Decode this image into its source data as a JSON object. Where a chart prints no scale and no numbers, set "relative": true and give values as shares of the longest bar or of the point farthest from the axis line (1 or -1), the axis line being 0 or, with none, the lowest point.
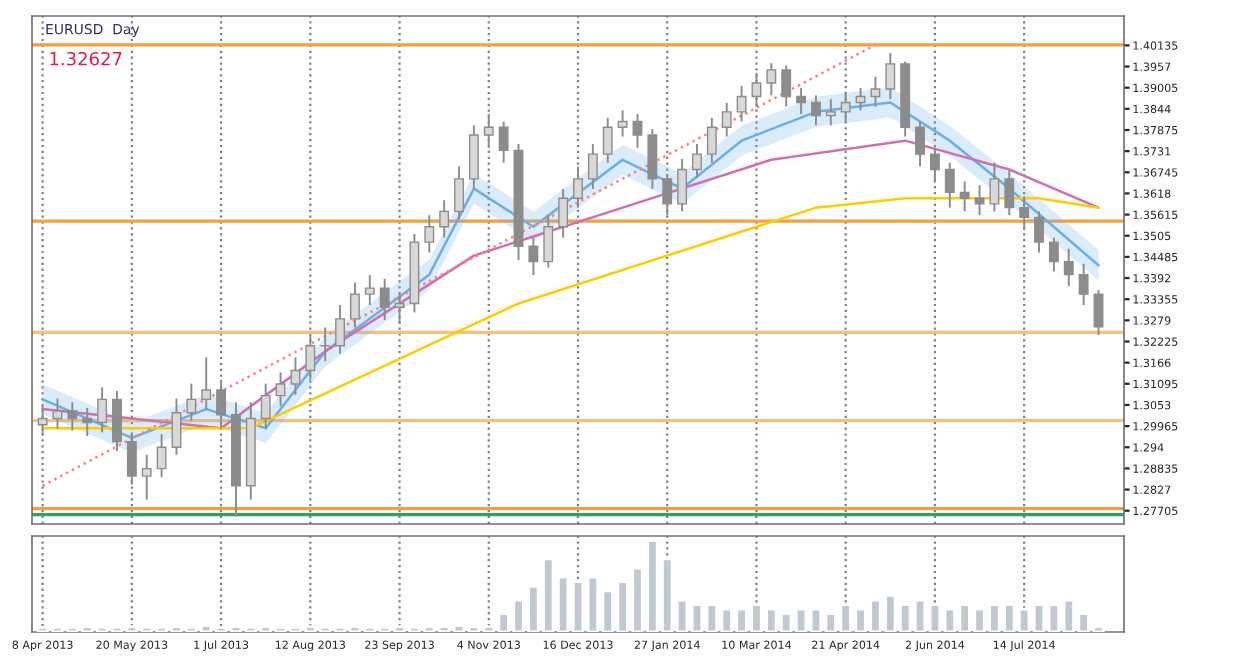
{
  "chart_data": [
    {
      "type": "candlestick",
      "title": "EURUSD  Day",
      "annotations": [
        "1.32627"
      ],
      "ylim": [
        1.2735,
        1.4092
      ],
      "yticks": [
        1.40135,
        1.3957,
        1.39005,
        1.3844,
        1.37875,
        1.3731,
        1.36745,
        1.3618,
        1.35615,
        1.3505,
        1.34485,
        1.3392,
        1.33355,
        1.3279,
        1.32225,
        1.3166,
        1.31095,
        1.3053,
        1.29965,
        1.294,
        1.28835,
        1.2827,
        1.27705
      ],
      "xlim": [
        "2013-04-03",
        "2014-08-30"
      ],
      "xticks": [
        "2013-04-08",
        "2013-05-20",
        "2013-07-01",
        "2013-08-12",
        "2013-09-23",
        "2013-11-04",
        "2013-12-16",
        "2014-01-27",
        "2014-03-10",
        "2014-04-21",
        "2014-06-02",
        "2014-07-14"
      ],
      "grid": "x",
      "tick_labels": "y",
      "series": [
        {
          "type": "candlestick",
          "color": "#8c8c8c",
          "x": [
            "2013-04-08",
            "2013-04-15",
            "2013-04-22",
            "2013-04-29",
            "2013-05-06",
            "2013-05-13",
            "2013-05-20",
            "2013-05-27",
            "2013-06-03",
            "2013-06-10",
            "2013-06-17",
            "2013-06-24",
            "2013-07-01",
            "2013-07-08",
            "2013-07-15",
            "2013-07-22",
            "2013-07-29",
            "2013-08-05",
            "2013-08-12",
            "2013-08-19",
            "2013-08-26",
            "2013-09-02",
            "2013-09-09",
            "2013-09-16",
            "2013-09-23",
            "2013-09-30",
            "2013-10-07",
            "2013-10-14",
            "2013-10-21",
            "2013-10-28",
            "2013-11-04",
            "2013-11-11",
            "2013-11-18",
            "2013-11-25",
            "2013-12-02",
            "2013-12-09",
            "2013-12-16",
            "2013-12-23",
            "2013-12-30",
            "2014-01-06",
            "2014-01-13",
            "2014-01-20",
            "2014-01-27",
            "2014-02-03",
            "2014-02-10",
            "2014-02-17",
            "2014-02-24",
            "2014-03-03",
            "2014-03-10",
            "2014-03-17",
            "2014-03-24",
            "2014-03-31",
            "2014-04-07",
            "2014-04-14",
            "2014-04-21",
            "2014-04-28",
            "2014-05-05",
            "2014-05-12",
            "2014-05-19",
            "2014-05-26",
            "2014-06-02",
            "2014-06-09",
            "2014-06-16",
            "2014-06-23",
            "2014-06-30",
            "2014-07-07",
            "2014-07-14",
            "2014-07-21",
            "2014-07-28",
            "2014-08-04",
            "2014-08-11",
            "2014-08-18"
          ],
          "ohlc": [
            [
              1.3,
              1.305,
              1.2975,
              1.3017
            ],
            [
              1.3017,
              1.307,
              1.299,
              1.3037
            ],
            [
              1.3037,
              1.306,
              1.2985,
              1.3017
            ],
            [
              1.3017,
              1.3045,
              1.297,
              1.3006
            ],
            [
              1.3006,
              1.31,
              1.298,
              1.3068
            ],
            [
              1.3068,
              1.309,
              1.293,
              1.2955
            ],
            [
              1.2955,
              1.298,
              1.284,
              1.2863
            ],
            [
              1.2863,
              1.292,
              1.28,
              1.2883
            ],
            [
              1.2883,
              1.2975,
              1.286,
              1.294
            ],
            [
              1.294,
              1.307,
              1.292,
              1.3032
            ],
            [
              1.3032,
              1.311,
              1.301,
              1.3068
            ],
            [
              1.3068,
              1.318,
              1.304,
              1.3093
            ],
            [
              1.3093,
              1.312,
              1.299,
              1.3027
            ],
            [
              1.3027,
              1.306,
              1.2755,
              1.2837
            ],
            [
              1.2837,
              1.306,
              1.28,
              1.3017
            ],
            [
              1.3017,
              1.311,
              1.299,
              1.3078
            ],
            [
              1.3078,
              1.314,
              1.305,
              1.3109
            ],
            [
              1.3109,
              1.318,
              1.308,
              1.3145
            ],
            [
              1.3145,
              1.324,
              1.312,
              1.3211
            ],
            [
              1.3211,
              1.326,
              1.317,
              1.3211
            ],
            [
              1.3211,
              1.332,
              1.319,
              1.3283
            ],
            [
              1.3283,
              1.338,
              1.326,
              1.3349
            ],
            [
              1.3349,
              1.34,
              1.332,
              1.3365
            ],
            [
              1.3365,
              1.339,
              1.328,
              1.3314
            ],
            [
              1.3314,
              1.335,
              1.327,
              1.3324
            ],
            [
              1.3324,
              1.351,
              1.33,
              1.3488
            ],
            [
              1.3488,
              1.356,
              1.346,
              1.3529
            ],
            [
              1.3529,
              1.36,
              1.35,
              1.357
            ],
            [
              1.357,
              1.369,
              1.355,
              1.3657
            ],
            [
              1.3657,
              1.38,
              1.363,
              1.3774
            ],
            [
              1.3774,
              1.383,
              1.374,
              1.3795
            ],
            [
              1.3795,
              1.381,
              1.37,
              1.3733
            ],
            [
              1.3733,
              1.375,
              1.344,
              1.3477
            ],
            [
              1.3477,
              1.35,
              1.34,
              1.3436
            ],
            [
              1.3436,
              1.356,
              1.342,
              1.3529
            ],
            [
              1.3529,
              1.363,
              1.35,
              1.3605
            ],
            [
              1.3605,
              1.369,
              1.358,
              1.3657
            ],
            [
              1.3657,
              1.375,
              1.363,
              1.3723
            ],
            [
              1.3723,
              1.382,
              1.37,
              1.3795
            ],
            [
              1.3795,
              1.384,
              1.377,
              1.381
            ],
            [
              1.381,
              1.383,
              1.374,
              1.3774
            ],
            [
              1.3774,
              1.379,
              1.363,
              1.3657
            ],
            [
              1.3657,
              1.367,
              1.356,
              1.359
            ],
            [
              1.359,
              1.371,
              1.357,
              1.3682
            ],
            [
              1.3682,
              1.375,
              1.366,
              1.3723
            ],
            [
              1.3723,
              1.382,
              1.37,
              1.3795
            ],
            [
              1.3795,
              1.386,
              1.377,
              1.3836
            ],
            [
              1.3836,
              1.3905,
              1.381,
              1.3877
            ],
            [
              1.3877,
              1.394,
              1.385,
              1.3913
            ],
            [
              1.3913,
              1.3966,
              1.388,
              1.3948
            ],
            [
              1.3948,
              1.396,
              1.385,
              1.3877
            ],
            [
              1.3877,
              1.39,
              1.383,
              1.3861
            ],
            [
              1.3861,
              1.388,
              1.38,
              1.3826
            ],
            [
              1.3826,
              1.387,
              1.38,
              1.3836
            ],
            [
              1.3836,
              1.389,
              1.381,
              1.3861
            ],
            [
              1.3861,
              1.39,
              1.384,
              1.3877
            ],
            [
              1.3877,
              1.393,
              1.385,
              1.3897
            ],
            [
              1.3897,
              1.3993,
              1.387,
              1.3964
            ],
            [
              1.3964,
              1.397,
              1.377,
              1.3795
            ],
            [
              1.3795,
              1.381,
              1.369,
              1.3723
            ],
            [
              1.3723,
              1.374,
              1.365,
              1.3682
            ],
            [
              1.3682,
              1.37,
              1.358,
              1.3621
            ],
            [
              1.3621,
              1.365,
              1.357,
              1.3605
            ],
            [
              1.3605,
              1.364,
              1.356,
              1.359
            ],
            [
              1.359,
              1.37,
              1.357,
              1.3657
            ],
            [
              1.3657,
              1.368,
              1.356,
              1.358
            ],
            [
              1.358,
              1.361,
              1.352,
              1.3554
            ],
            [
              1.3554,
              1.357,
              1.346,
              1.3488
            ],
            [
              1.3488,
              1.35,
              1.341,
              1.3436
            ],
            [
              1.3436,
              1.347,
              1.337,
              1.3401
            ],
            [
              1.3401,
              1.343,
              1.332,
              1.3349
            ],
            [
              1.3349,
              1.336,
              1.324,
              1.3262
            ]
          ]
        },
        {
          "type": "line",
          "color": "#6aaee8",
          "x": [
            "2013-04-08",
            "2013-05-20",
            "2013-06-24",
            "2013-07-22",
            "2013-08-19",
            "2013-10-07",
            "2013-10-28",
            "2013-11-25",
            "2014-01-06",
            "2014-02-03",
            "2014-03-03",
            "2014-04-07",
            "2014-05-12",
            "2014-06-09",
            "2014-07-07",
            "2014-08-18"
          ],
          "values": [
            1.3068,
            1.2965,
            1.3042,
            1.2991,
            1.3196,
            1.3401,
            1.3631,
            1.3529,
            1.3708,
            1.3631,
            1.3759,
            1.3836,
            1.3861,
            1.3759,
            1.3631,
            1.3426
          ],
          "lower": [
            1.3028,
            1.2925,
            1.3002,
            1.2951,
            1.3156,
            1.3361,
            1.3591,
            1.3489,
            1.3668,
            1.3591,
            1.3719,
            1.3796,
            1.3821,
            1.3719,
            1.3591,
            1.3386
          ],
          "upper": [
            1.3108,
            1.3005,
            1.3082,
            1.3031,
            1.3236,
            1.3441,
            1.3671,
            1.3569,
            1.3748,
            1.3671,
            1.3799,
            1.3876,
            1.3901,
            1.3799,
            1.3671,
            1.3466
          ]
        },
        {
          "type": "line",
          "color": "#d070b0",
          "x": [
            "2013-04-08",
            "2013-05-20",
            "2013-07-01",
            "2013-08-19",
            "2013-10-28",
            "2014-01-06",
            "2014-03-17",
            "2014-05-19",
            "2014-07-07",
            "2014-08-18"
          ],
          "values": [
            1.3042,
            1.3017,
            1.2991,
            1.3196,
            1.3452,
            1.358,
            1.3708,
            1.3759,
            1.3682,
            1.358
          ]
        },
        {
          "type": "line",
          "color": "#ffcc00",
          "x": [
            "2013-04-08",
            "2013-07-15",
            "2013-11-18",
            "2014-04-07",
            "2014-05-19",
            "2014-07-21",
            "2014-08-18"
          ],
          "values": [
            1.2991,
            1.2991,
            1.3324,
            1.358,
            1.3605,
            1.3605,
            1.358
          ]
        },
        {
          "type": "line",
          "color": "#ff8080",
          "line_style": "dotted",
          "x": [
            "2013-04-08",
            "2014-05-05"
          ],
          "values": [
            1.2837,
            1.4015
          ]
        }
      ],
      "ref_lines": [
        {
          "axis": "y",
          "value": 1.4015,
          "color": "#f5a040"
        },
        {
          "axis": "y",
          "value": 1.3544,
          "color": "#f5a040"
        },
        {
          "axis": "y",
          "value": 1.3247,
          "color": "#f8c080"
        },
        {
          "axis": "y",
          "value": 1.3011,
          "color": "#f8c080"
        },
        {
          "axis": "y",
          "value": 1.2776,
          "color": "#f5a040"
        },
        {
          "axis": "y",
          "value": 1.276,
          "color": "#30a060"
        }
      ]
    },
    {
      "type": "bar",
      "relative": true,
      "color": "#c0c8d2",
      "grid": "x",
      "tick_labels": "x",
      "x": [
        "2013-04-08",
        "2013-04-15",
        "2013-04-22",
        "2013-04-29",
        "2013-05-06",
        "2013-05-13",
        "2013-05-20",
        "2013-05-27",
        "2013-06-03",
        "2013-06-10",
        "2013-06-17",
        "2013-06-24",
        "2013-07-01",
        "2013-07-08",
        "2013-07-15",
        "2013-07-22",
        "2013-07-29",
        "2013-08-05",
        "2013-08-12",
        "2013-08-19",
        "2013-08-26",
        "2013-09-02",
        "2013-09-09",
        "2013-09-16",
        "2013-09-23",
        "2013-09-30",
        "2013-10-07",
        "2013-10-14",
        "2013-10-21",
        "2013-10-28",
        "2013-11-04",
        "2013-11-11",
        "2013-11-18",
        "2013-11-25",
        "2013-12-02",
        "2013-12-09",
        "2013-12-16",
        "2013-12-23",
        "2013-12-30",
        "2014-01-06",
        "2014-01-13",
        "2014-01-20",
        "2014-01-27",
        "2014-02-03",
        "2014-02-10",
        "2014-02-17",
        "2014-02-24",
        "2014-03-03",
        "2014-03-10",
        "2014-03-17",
        "2014-03-24",
        "2014-03-31",
        "2014-04-07",
        "2014-04-14",
        "2014-04-21",
        "2014-04-28",
        "2014-05-05",
        "2014-05-12",
        "2014-05-19",
        "2014-05-26",
        "2014-06-02",
        "2014-06-09",
        "2014-06-16",
        "2014-06-23",
        "2014-06-30",
        "2014-07-07",
        "2014-07-14",
        "2014-07-21",
        "2014-07-28",
        "2014-08-04",
        "2014-08-11",
        "2014-08-18"
      ],
      "values": [
        0.05,
        0.05,
        0.05,
        0.06,
        0.05,
        0.05,
        0.06,
        0.05,
        0.05,
        0.06,
        0.05,
        0.07,
        0.05,
        0.06,
        0.05,
        0.06,
        0.05,
        0.05,
        0.06,
        0.05,
        0.05,
        0.06,
        0.05,
        0.05,
        0.06,
        0.05,
        0.06,
        0.06,
        0.07,
        0.06,
        0.06,
        0.2,
        0.35,
        0.5,
        0.8,
        0.6,
        0.55,
        0.6,
        0.45,
        0.55,
        0.7,
        1.0,
        0.8,
        0.35,
        0.3,
        0.3,
        0.25,
        0.25,
        0.3,
        0.25,
        0.2,
        0.25,
        0.25,
        0.2,
        0.3,
        0.25,
        0.35,
        0.4,
        0.3,
        0.35,
        0.3,
        0.25,
        0.3,
        0.25,
        0.3,
        0.3,
        0.25,
        0.3,
        0.3,
        0.35,
        0.2,
        0.06
      ],
      "xlim": [
        "2013-04-03",
        "2014-08-30"
      ],
      "xticks": [
        {
          "value": "2013-04-08",
          "label": "8 Apr 2013"
        },
        {
          "value": "2013-05-20",
          "label": "20 May 2013"
        },
        {
          "value": "2013-07-01",
          "label": "1 Jul 2013"
        },
        {
          "value": "2013-08-12",
          "label": "12 Aug 2013"
        },
        {
          "value": "2013-09-23",
          "label": "23 Sep 2013"
        },
        {
          "value": "2013-11-04",
          "label": "4 Nov 2013"
        },
        {
          "value": "2013-12-16",
          "label": "16 Dec 2013"
        },
        {
          "value": "2014-01-27",
          "label": "27 Jan 2014"
        },
        {
          "value": "2014-03-10",
          "label": "10 Mar 2014"
        },
        {
          "value": "2014-04-21",
          "label": "21 Apr 2014"
        },
        {
          "value": "2014-06-02",
          "label": "2 Jun 2014"
        },
        {
          "value": "2014-07-14",
          "label": "14 Jul 2014"
        }
      ]
    }
  ]
}
